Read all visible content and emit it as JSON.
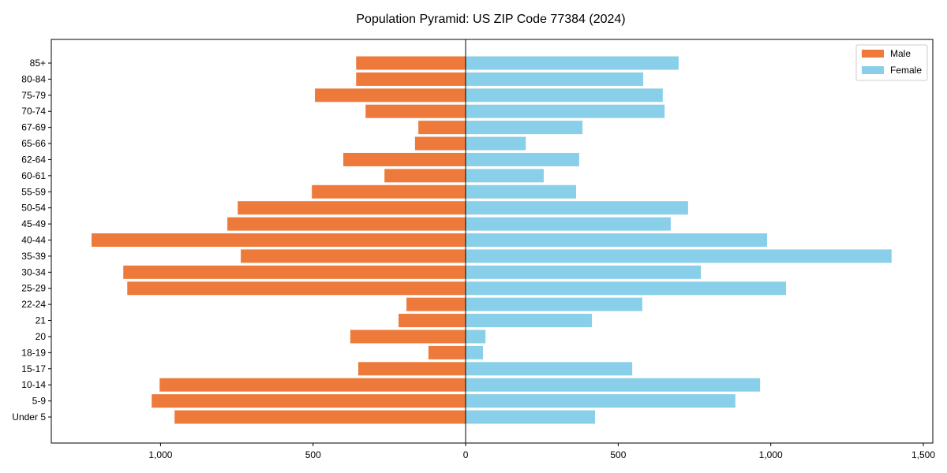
{
  "chart_data": {
    "type": "bar",
    "orientation": "horizontal-pyramid",
    "title": "Population Pyramid: US ZIP Code 77384 (2024)",
    "xlabel": "",
    "ylabel": "",
    "xlim": [
      -1358,
      1531
    ],
    "xticks": [
      -1000,
      -500,
      0,
      500,
      1000,
      1500
    ],
    "xtick_labels": [
      "1,000",
      "500",
      "0",
      "500",
      "1,000",
      "1,500"
    ],
    "legend_position": "top-right",
    "grid": false,
    "categories": [
      "85+",
      "80-84",
      "75-79",
      "70-74",
      "67-69",
      "65-66",
      "62-64",
      "60-61",
      "55-59",
      "50-54",
      "45-49",
      "40-44",
      "35-39",
      "30-34",
      "25-29",
      "22-24",
      "21",
      "20",
      "18-19",
      "15-17",
      "10-14",
      "5-9",
      "Under 5"
    ],
    "series": [
      {
        "name": "Male",
        "color": "#ED7A3B",
        "side": "left",
        "values": [
          359,
          359,
          494,
          328,
          155,
          166,
          401,
          266,
          504,
          747,
          781,
          1226,
          737,
          1122,
          1109,
          194,
          220,
          378,
          122,
          352,
          1003,
          1029,
          954
        ]
      },
      {
        "name": "Female",
        "color": "#89CFEA",
        "side": "right",
        "values": [
          698,
          582,
          646,
          652,
          383,
          197,
          372,
          256,
          362,
          729,
          672,
          988,
          1396,
          771,
          1050,
          579,
          414,
          65,
          57,
          546,
          965,
          884,
          424
        ]
      }
    ]
  }
}
